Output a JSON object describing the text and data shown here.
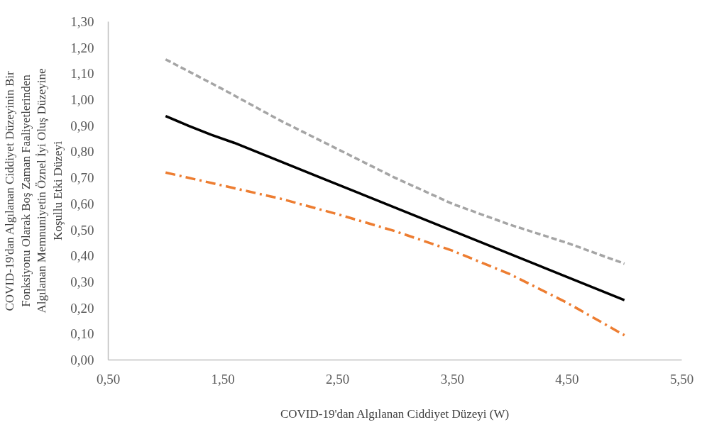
{
  "chart_data": {
    "type": "line",
    "xlabel": "COVID-19'dan Algılanan Ciddiyet Düzeyi (W)",
    "ylabel": "COVID-19'dan Algılanan Ciddiyet Düzeyinin Bir Fonksiyonu Olarak Boş Zaman Faaliyetlerinden Algılanan Memnuniyetin Öznel İyi Oluş Düzeyine Koşullu Etki Düzeyi",
    "xlim": [
      0.5,
      5.5
    ],
    "ylim": [
      0,
      1.3
    ],
    "xticks": [
      {
        "value": 0.5,
        "label": "0,50"
      },
      {
        "value": 1.5,
        "label": "1,50"
      },
      {
        "value": 2.5,
        "label": "2,50"
      },
      {
        "value": 3.5,
        "label": "3,50"
      },
      {
        "value": 4.5,
        "label": "4,50"
      },
      {
        "value": 5.5,
        "label": "5,50"
      }
    ],
    "yticks": [
      {
        "value": 0,
        "label": "0,00"
      },
      {
        "value": 0.1,
        "label": "0,10"
      },
      {
        "value": 0.2,
        "label": "0,20"
      },
      {
        "value": 0.3,
        "label": "0,30"
      },
      {
        "value": 0.4,
        "label": "0,40"
      },
      {
        "value": 0.5,
        "label": "0,50"
      },
      {
        "value": 0.6,
        "label": "0,60"
      },
      {
        "value": 0.7,
        "label": "0,70"
      },
      {
        "value": 0.8,
        "label": "0,80"
      },
      {
        "value": 0.9,
        "label": "0,90"
      },
      {
        "value": 1.0,
        "label": "1,00"
      },
      {
        "value": 1.1,
        "label": "1,10"
      },
      {
        "value": 1.2,
        "label": "1,20"
      },
      {
        "value": 1.3,
        "label": "1,30"
      }
    ],
    "grid": false,
    "marker": "none",
    "series": [
      {
        "color": "#a5a5a5",
        "line_style": "dashed",
        "x": [
          1.0,
          1.5,
          2.0,
          2.5,
          3.0,
          3.5,
          4.0,
          4.5,
          5.0
        ],
        "values": [
          1.155,
          1.04,
          0.92,
          0.81,
          0.7,
          0.6,
          0.52,
          0.45,
          0.37
        ]
      },
      {
        "color": "#000000",
        "line_style": "solid",
        "x": [
          1.0,
          1.2,
          1.4,
          1.6,
          5.0
        ],
        "values": [
          0.937,
          0.9,
          0.865,
          0.834,
          0.23
        ]
      },
      {
        "color": "#ed7d31",
        "line_style": "dashdot",
        "x": [
          1.0,
          1.5,
          2.0,
          2.5,
          3.0,
          3.5,
          4.0,
          4.5,
          5.0
        ],
        "values": [
          0.72,
          0.67,
          0.62,
          0.56,
          0.495,
          0.42,
          0.33,
          0.22,
          0.095
        ]
      }
    ]
  }
}
